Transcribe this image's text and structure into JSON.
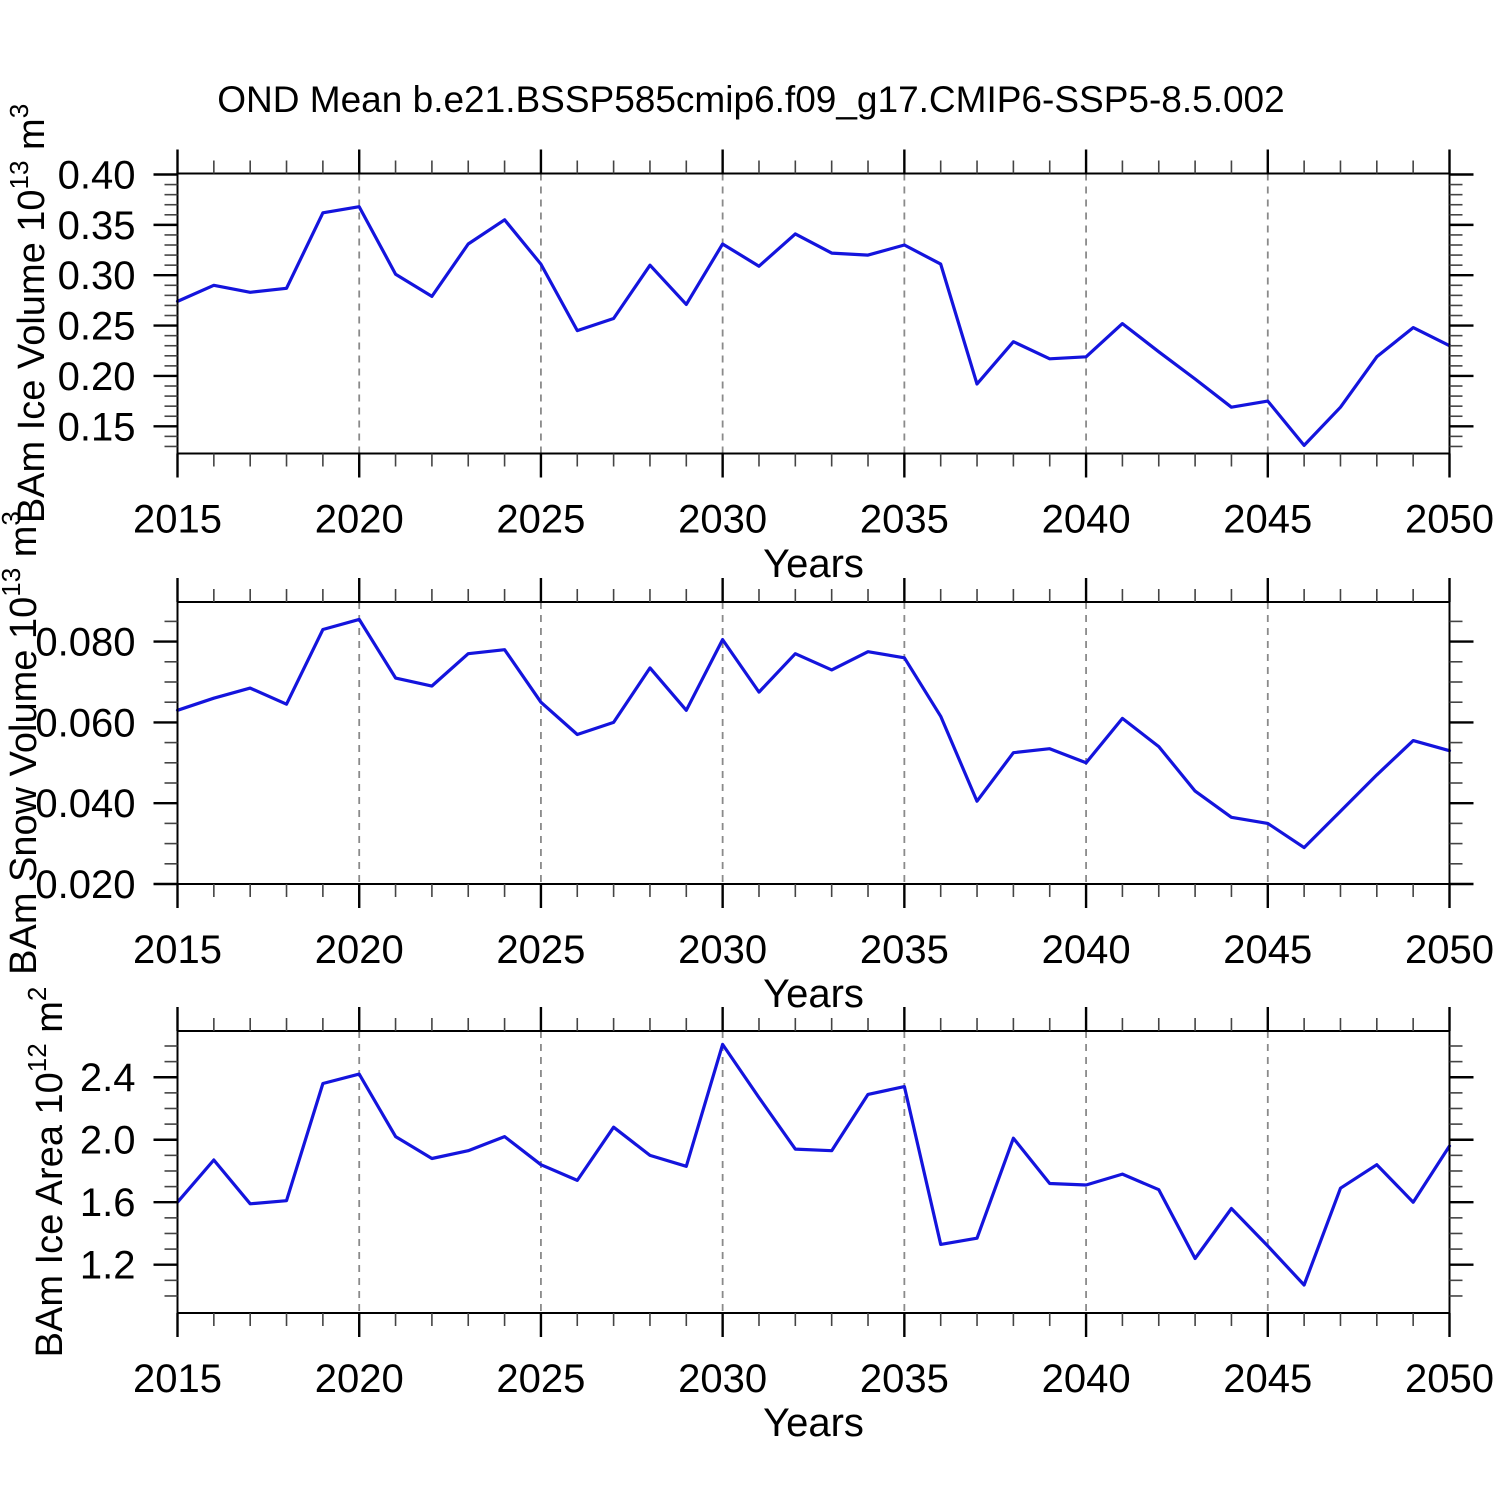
{
  "title": "OND Mean b.e21.BSSP585cmip6.f09_g17.CMIP6-SSP5-8.5.002",
  "xlabel": "Years",
  "years": [
    2015,
    2016,
    2017,
    2018,
    2019,
    2020,
    2021,
    2022,
    2023,
    2024,
    2025,
    2026,
    2027,
    2028,
    2029,
    2030,
    2031,
    2032,
    2033,
    2034,
    2035,
    2036,
    2037,
    2038,
    2039,
    2040,
    2041,
    2042,
    2043,
    2044,
    2045,
    2046,
    2047,
    2048,
    2049,
    2050
  ],
  "xtick_major_years": [
    2015,
    2020,
    2025,
    2030,
    2035,
    2040,
    2045,
    2050
  ],
  "xtick_major_labels": [
    "2015",
    "2020",
    "2025",
    "2030",
    "2035",
    "2040",
    "2045",
    "2050"
  ],
  "grid_years": [
    2020,
    2025,
    2030,
    2035,
    2040,
    2045
  ],
  "colors": {
    "line": "#1414dd",
    "grid": "#8a8a8a",
    "axis": "#000000",
    "minor_tick": "#444444",
    "background": "#ffffff"
  },
  "chart_data": [
    {
      "type": "line",
      "id": "ice-volume",
      "ylabel": {
        "main": "BAm Ice Volume 10",
        "exp": "13",
        "unit": " m",
        "unit_exp": "3"
      },
      "ylim": [
        0.123,
        0.401
      ],
      "yticks": [
        {
          "v": 0.15,
          "label": "0.15"
        },
        {
          "v": 0.2,
          "label": "0.20"
        },
        {
          "v": 0.25,
          "label": "0.25"
        },
        {
          "v": 0.3,
          "label": "0.30"
        },
        {
          "v": 0.35,
          "label": "0.35"
        },
        {
          "v": 0.4,
          "label": "0.40"
        }
      ],
      "minor_step": 0.01,
      "minor_min": 0.13,
      "minor_max": 0.4,
      "values": [
        0.274,
        0.29,
        0.283,
        0.287,
        0.362,
        0.368,
        0.301,
        0.279,
        0.331,
        0.355,
        0.311,
        0.245,
        0.257,
        0.31,
        0.271,
        0.331,
        0.309,
        0.341,
        0.322,
        0.32,
        0.33,
        0.311,
        0.192,
        0.234,
        0.217,
        0.219,
        0.252,
        0.224,
        0.197,
        0.169,
        0.175,
        0.131,
        0.169,
        0.219,
        0.248,
        0.23
      ]
    },
    {
      "type": "line",
      "id": "snow-volume",
      "ylabel": {
        "main": "BAm Snow Volume 10",
        "exp": "13",
        "unit": " m",
        "unit_exp": "3"
      },
      "ylim": [
        0.02,
        0.0898
      ],
      "yticks": [
        {
          "v": 0.02,
          "label": "0.020"
        },
        {
          "v": 0.04,
          "label": "0.040"
        },
        {
          "v": 0.06,
          "label": "0.060"
        },
        {
          "v": 0.08,
          "label": "0.080"
        }
      ],
      "minor_step": 0.005,
      "minor_min": 0.025,
      "minor_max": 0.085,
      "values": [
        0.063,
        0.066,
        0.0685,
        0.0645,
        0.083,
        0.0855,
        0.071,
        0.069,
        0.077,
        0.078,
        0.065,
        0.057,
        0.06,
        0.0735,
        0.063,
        0.0805,
        0.0675,
        0.077,
        0.073,
        0.0775,
        0.076,
        0.0615,
        0.0405,
        0.0525,
        0.0535,
        0.05,
        0.061,
        0.054,
        0.043,
        0.0365,
        0.035,
        0.029,
        0.038,
        0.047,
        0.0555,
        0.053
      ]
    },
    {
      "type": "line",
      "id": "ice-area",
      "ylabel": {
        "main": "BAm Ice Area 10",
        "exp": "12",
        "unit": " m",
        "unit_exp": "2"
      },
      "ylim": [
        0.891,
        2.696
      ],
      "yticks": [
        {
          "v": 1.2,
          "label": "1.2"
        },
        {
          "v": 1.6,
          "label": "1.6"
        },
        {
          "v": 2.0,
          "label": "2.0"
        },
        {
          "v": 2.4,
          "label": "2.4"
        }
      ],
      "minor_step": 0.1,
      "minor_min": 1.0,
      "minor_max": 2.6,
      "values": [
        1.6,
        1.87,
        1.59,
        1.61,
        2.36,
        2.42,
        2.02,
        1.88,
        1.93,
        2.02,
        1.84,
        1.74,
        2.08,
        1.9,
        1.83,
        2.61,
        2.27,
        1.94,
        1.93,
        2.29,
        2.34,
        1.33,
        1.37,
        2.01,
        1.72,
        1.71,
        1.78,
        1.68,
        1.24,
        1.56,
        1.32,
        1.07,
        1.69,
        1.84,
        1.6,
        1.96
      ]
    }
  ]
}
